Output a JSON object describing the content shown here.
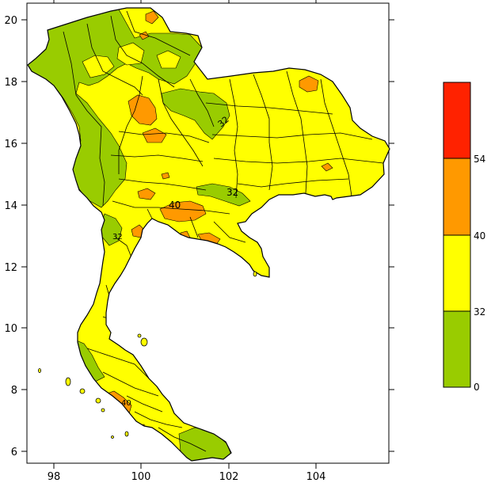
{
  "map": {
    "x_ticks": [
      "98",
      "100",
      "102",
      "104"
    ],
    "y_ticks": [
      "6",
      "8",
      "10",
      "12",
      "14",
      "16",
      "18",
      "20"
    ],
    "contour_labels": [
      "40",
      "32",
      "32",
      "40",
      "32"
    ]
  },
  "legend": {
    "boundary_labels": [
      "0",
      "32",
      "40",
      "54"
    ],
    "classes": [
      {
        "range": "0-32",
        "color": "#99cc00"
      },
      {
        "range": "32-40",
        "color": "#ffff00"
      },
      {
        "range": "40-54",
        "color": "#ff9900"
      },
      {
        "range": "54+",
        "color": "#ff2200"
      }
    ]
  }
}
